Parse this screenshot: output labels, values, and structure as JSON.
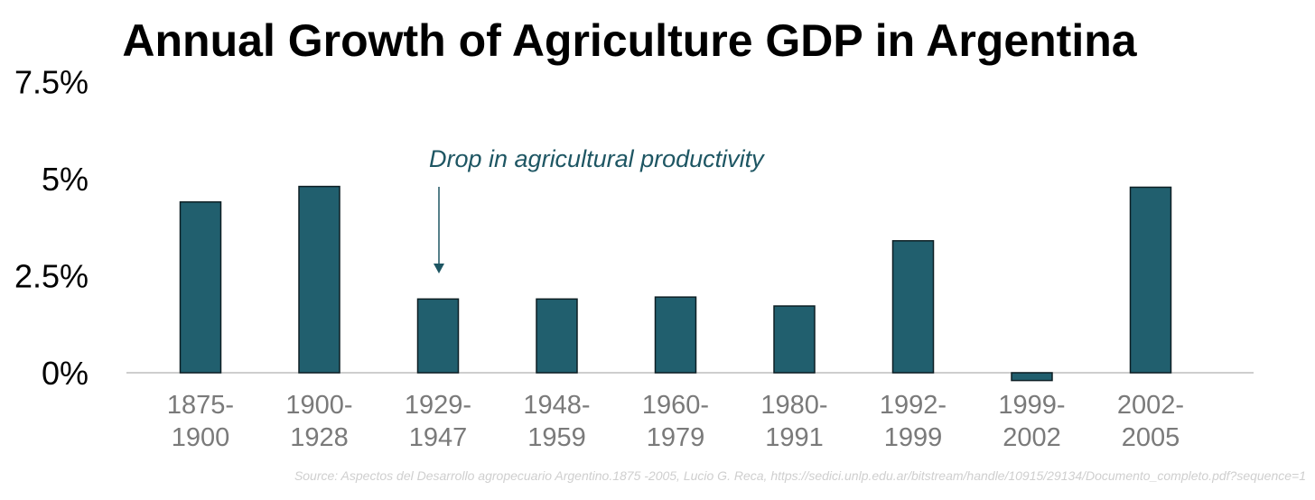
{
  "chart_data": {
    "type": "bar",
    "title": "Annual Growth of Agriculture GDP in Argentina",
    "categories": [
      [
        "1875-",
        "1900"
      ],
      [
        "1900-",
        "1928"
      ],
      [
        "1929-",
        "1947"
      ],
      [
        "1948-",
        "1959"
      ],
      [
        "1960-",
        "1979"
      ],
      [
        "1980-",
        "1991"
      ],
      [
        "1992-",
        "1999"
      ],
      [
        "1999-",
        "2002"
      ],
      [
        "2002-",
        "2005"
      ]
    ],
    "values": [
      4.4,
      4.8,
      1.9,
      1.9,
      1.95,
      1.72,
      3.4,
      -0.2,
      4.78
    ],
    "yticks": [
      "0%",
      "2.5%",
      "5%",
      "7.5%"
    ],
    "ytick_values": [
      0,
      2.5,
      5,
      7.5
    ],
    "ylim": [
      -0.5,
      7.5
    ],
    "xlabel": "",
    "ylabel": "",
    "grid": false,
    "annotation": {
      "text": "Drop in agricultural productivity",
      "target_category_index": 2
    },
    "source": "Source: Aspectos del Desarrollo agropecuario Argentino.1875 -2005, Lucio G. Reca, https://sedici.unlp.edu.ar/bitstream/handle/10915/29134/Documento_completo.pdf?sequence=1",
    "colors": {
      "bar": "#215f6e",
      "bar_stroke": "#0d1f24",
      "axis": "#bdbdbd",
      "annotation": "#1e5663"
    }
  }
}
